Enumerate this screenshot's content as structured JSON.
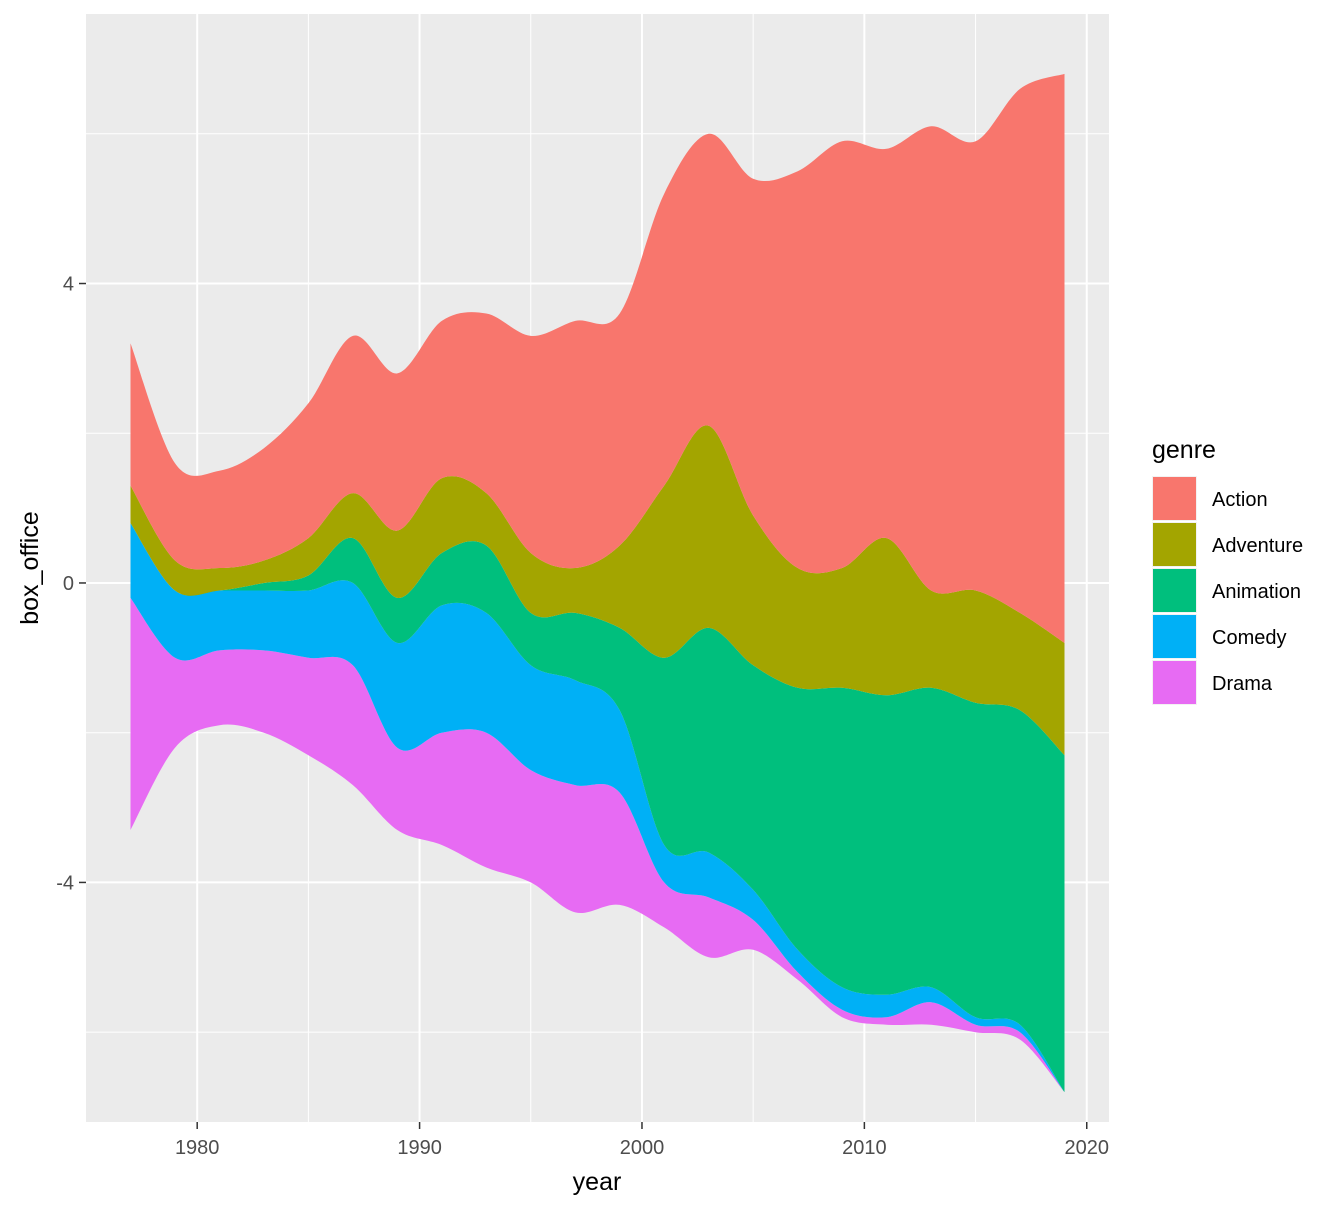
{
  "chart_data": {
    "type": "area",
    "subtype": "streamgraph",
    "title": "",
    "xlabel": "year",
    "ylabel": "box_office",
    "xlim": [
      1975,
      2021
    ],
    "ylim": [
      -7.2,
      7.6
    ],
    "x_ticks": [
      1980,
      1990,
      2000,
      2010,
      2020
    ],
    "x_tick_labels": [
      "1980",
      "1990",
      "2000",
      "2010",
      "2020"
    ],
    "y_ticks": [
      -4,
      0,
      4
    ],
    "y_tick_labels": [
      "-4",
      "0",
      "4"
    ],
    "grid": true,
    "legend": {
      "title": "genre",
      "position": "right"
    },
    "x": [
      1977,
      1979,
      1981,
      1983,
      1985,
      1987,
      1989,
      1991,
      1993,
      1995,
      1997,
      1999,
      2001,
      2003,
      2005,
      2007,
      2009,
      2011,
      2013,
      2015,
      2017,
      2019
    ],
    "baseline": [
      -3.3,
      -2.2,
      -1.9,
      -2.0,
      -2.3,
      -2.7,
      -3.3,
      -3.5,
      -3.8,
      -4.0,
      -4.4,
      -4.3,
      -4.6,
      -5.0,
      -4.9,
      -5.3,
      -5.8,
      -5.9,
      -5.9,
      -6.0,
      -6.1,
      -6.8
    ],
    "series": [
      {
        "name": "Drama",
        "color": "#E76BF3",
        "values": [
          3.1,
          1.2,
          1.0,
          1.1,
          1.3,
          1.6,
          1.1,
          1.5,
          1.8,
          1.5,
          1.7,
          1.5,
          0.6,
          0.8,
          0.4,
          0.1,
          0.1,
          0.1,
          0.3,
          0.1,
          0.1,
          0.0
        ]
      },
      {
        "name": "Comedy",
        "color": "#00B0F6",
        "values": [
          1.0,
          0.9,
          0.8,
          0.8,
          0.9,
          1.1,
          1.4,
          1.7,
          1.6,
          1.4,
          1.4,
          1.1,
          0.5,
          0.6,
          0.4,
          0.3,
          0.3,
          0.3,
          0.2,
          0.1,
          0.1,
          0.0
        ]
      },
      {
        "name": "Animation",
        "color": "#00BF7D",
        "values": [
          0.0,
          0.0,
          0.0,
          0.1,
          0.2,
          0.6,
          0.6,
          0.7,
          0.9,
          0.7,
          0.9,
          1.1,
          2.5,
          3.0,
          3.0,
          3.5,
          4.0,
          4.0,
          4.0,
          4.2,
          4.2,
          4.5
        ]
      },
      {
        "name": "Adventure",
        "color": "#A3A500",
        "values": [
          0.5,
          0.4,
          0.3,
          0.3,
          0.5,
          0.6,
          0.9,
          1.0,
          0.7,
          0.8,
          0.6,
          1.1,
          2.3,
          2.7,
          2.0,
          1.6,
          1.6,
          2.1,
          1.3,
          1.5,
          1.3,
          1.5
        ]
      },
      {
        "name": "Action",
        "color": "#F8766D",
        "values": [
          1.9,
          1.3,
          1.3,
          1.5,
          1.8,
          2.1,
          2.1,
          2.1,
          2.4,
          2.9,
          3.3,
          3.1,
          3.9,
          3.9,
          4.5,
          5.3,
          5.7,
          5.2,
          6.2,
          6.0,
          7.0,
          7.6
        ]
      }
    ]
  }
}
